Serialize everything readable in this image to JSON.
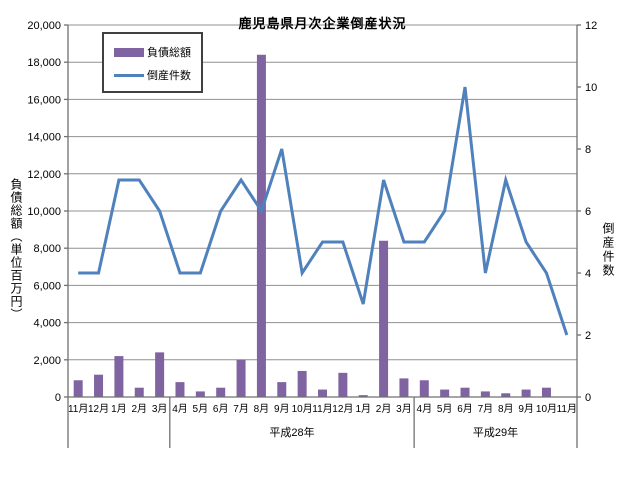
{
  "page": {
    "background": "#ffffff"
  },
  "chart_data": {
    "type": "bar",
    "subtype": "combo-bar-line-dual-axis",
    "title": "鹿児島県月次企業倒産状況",
    "categories": [
      "11月",
      "12月",
      "1月",
      "2月",
      "3月",
      "4月",
      "5月",
      "6月",
      "7月",
      "8月",
      "9月",
      "10月",
      "11月",
      "12月",
      "1月",
      "2月",
      "3月",
      "4月",
      "5月",
      "6月",
      "7月",
      "8月",
      "9月",
      "10月",
      "11月"
    ],
    "group_labels": [
      {
        "label": "",
        "start": 0,
        "end": 4
      },
      {
        "label": "平成28年",
        "start": 5,
        "end": 16
      },
      {
        "label": "平成29年",
        "start": 17,
        "end": 24
      }
    ],
    "series": [
      {
        "name": "負債総額",
        "type": "bar",
        "axis": "left",
        "color": "#8064A2",
        "values": [
          900,
          1200,
          2200,
          500,
          2400,
          800,
          300,
          500,
          2000,
          18400,
          800,
          1400,
          400,
          1300,
          100,
          8400,
          1000,
          900,
          400,
          500,
          300,
          200,
          400,
          500,
          0
        ]
      },
      {
        "name": "倒産件数",
        "type": "line",
        "axis": "right",
        "color": "#4F81BD",
        "values": [
          4,
          4,
          7,
          7,
          6,
          4,
          4,
          6,
          7,
          6,
          8,
          4,
          5,
          5,
          3,
          7,
          5,
          5,
          6,
          10,
          4,
          7,
          5,
          4,
          2
        ]
      }
    ],
    "left_axis": {
      "title": "負債総額（単位百万円）",
      "min": 0,
      "max": 20000,
      "step": 2000,
      "tick_labels": [
        "0",
        "2,000",
        "4,000",
        "6,000",
        "8,000",
        "10,000",
        "12,000",
        "14,000",
        "16,000",
        "18,000",
        "20,000"
      ]
    },
    "right_axis": {
      "title": "倒産件数",
      "min": 0,
      "max": 12,
      "step": 2,
      "tick_labels": [
        "0",
        "2",
        "4",
        "6",
        "8",
        "10",
        "12"
      ]
    },
    "legend": {
      "position": "top-left",
      "items": [
        {
          "label": "負債総額",
          "swatch": "bar",
          "color": "#8064A2"
        },
        {
          "label": "倒産件数",
          "swatch": "line",
          "color": "#4F81BD"
        }
      ]
    },
    "grid": {
      "on": true,
      "color": "#909090"
    },
    "axis_color": "#707070",
    "text_color": "#000000"
  }
}
